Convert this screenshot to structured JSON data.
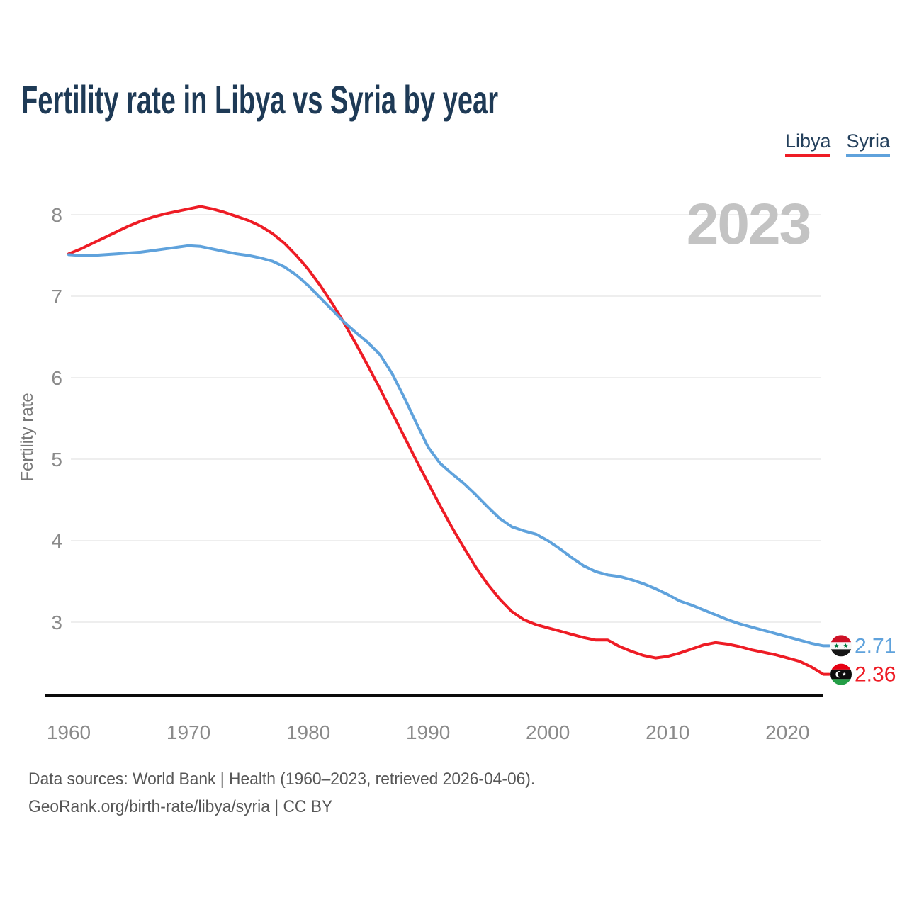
{
  "page": {
    "title": "Fertility rate in Libya vs Syria by year"
  },
  "legend": {
    "items": [
      {
        "label": "Libya",
        "color": "#ee1c25"
      },
      {
        "label": "Syria",
        "color": "#5fa2dc"
      }
    ]
  },
  "footer": {
    "line1": "Data sources: World Bank | Health (1960–2023, retrieved 2026-04-06).",
    "line2": "GeoRank.org/birth-rate/libya/syria | CC BY"
  },
  "chart_data": {
    "type": "line",
    "title": "Fertility rate in Libya vs Syria by year",
    "xlabel": "",
    "ylabel": "Fertility rate",
    "watermark": "2023",
    "grid": "horizontal",
    "legend_position": "top-right",
    "ylim": [
      2.1,
      8.35
    ],
    "xlim": [
      1960,
      2023
    ],
    "y_ticks": [
      3,
      4,
      5,
      6,
      7,
      8
    ],
    "x_ticks": [
      1960,
      1970,
      1980,
      1990,
      2000,
      2010,
      2020
    ],
    "x": [
      1960,
      1961,
      1962,
      1963,
      1964,
      1965,
      1966,
      1967,
      1968,
      1969,
      1970,
      1971,
      1972,
      1973,
      1974,
      1975,
      1976,
      1977,
      1978,
      1979,
      1980,
      1981,
      1982,
      1983,
      1984,
      1985,
      1986,
      1987,
      1988,
      1989,
      1990,
      1991,
      1992,
      1993,
      1994,
      1995,
      1996,
      1997,
      1998,
      1999,
      2000,
      2001,
      2002,
      2003,
      2004,
      2005,
      2006,
      2007,
      2008,
      2009,
      2010,
      2011,
      2012,
      2013,
      2014,
      2015,
      2016,
      2017,
      2018,
      2019,
      2020,
      2021,
      2022,
      2023
    ],
    "series": [
      {
        "name": "Libya",
        "color": "#ee1c25",
        "values": [
          7.52,
          7.58,
          7.65,
          7.72,
          7.79,
          7.86,
          7.92,
          7.97,
          8.01,
          8.04,
          8.07,
          8.1,
          8.07,
          8.03,
          7.98,
          7.93,
          7.86,
          7.77,
          7.65,
          7.5,
          7.33,
          7.13,
          6.91,
          6.67,
          6.41,
          6.14,
          5.86,
          5.57,
          5.28,
          4.99,
          4.71,
          4.43,
          4.16,
          3.91,
          3.67,
          3.46,
          3.28,
          3.13,
          3.03,
          2.97,
          2.93,
          2.89,
          2.85,
          2.81,
          2.78,
          2.78,
          2.7,
          2.64,
          2.59,
          2.56,
          2.58,
          2.62,
          2.67,
          2.72,
          2.75,
          2.73,
          2.7,
          2.66,
          2.63,
          2.6,
          2.56,
          2.52,
          2.45,
          2.36
        ]
      },
      {
        "name": "Syria",
        "color": "#5fa2dc",
        "values": [
          7.51,
          7.5,
          7.5,
          7.51,
          7.52,
          7.53,
          7.54,
          7.56,
          7.58,
          7.6,
          7.62,
          7.61,
          7.58,
          7.55,
          7.52,
          7.5,
          7.47,
          7.43,
          7.36,
          7.26,
          7.13,
          6.98,
          6.83,
          6.68,
          6.55,
          6.43,
          6.28,
          6.05,
          5.76,
          5.45,
          5.15,
          4.95,
          4.82,
          4.7,
          4.56,
          4.41,
          4.27,
          4.17,
          4.12,
          4.08,
          4.0,
          3.9,
          3.79,
          3.69,
          3.62,
          3.58,
          3.56,
          3.52,
          3.47,
          3.41,
          3.34,
          3.26,
          3.21,
          3.15,
          3.09,
          3.03,
          2.98,
          2.94,
          2.9,
          2.86,
          2.82,
          2.78,
          2.74,
          2.71
        ]
      }
    ],
    "end_labels": [
      {
        "series": "Syria",
        "flag": "syria",
        "value": "2.71"
      },
      {
        "series": "Libya",
        "flag": "libya",
        "value": "2.36"
      }
    ]
  }
}
